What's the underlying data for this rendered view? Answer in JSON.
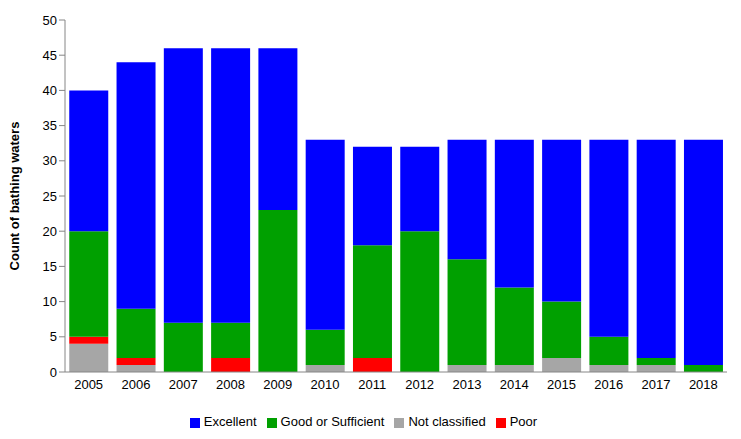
{
  "chart_data": {
    "type": "bar",
    "stacked": true,
    "y_label": "Count of bathing waters",
    "categories": [
      "2005",
      "2006",
      "2007",
      "2008",
      "2009",
      "2010",
      "2011",
      "2012",
      "2013",
      "2014",
      "2015",
      "2016",
      "2017",
      "2018"
    ],
    "series": [
      {
        "name": "Not classified",
        "color": "#a6a6a6",
        "values": [
          4,
          1,
          0,
          0,
          0,
          1,
          0,
          0,
          1,
          1,
          2,
          1,
          1,
          0
        ]
      },
      {
        "name": "Poor",
        "color": "#ff0000",
        "values": [
          1,
          1,
          0,
          2,
          0,
          0,
          2,
          0,
          0,
          0,
          0,
          0,
          0,
          0
        ]
      },
      {
        "name": "Good or Sufficient",
        "color": "#00a000",
        "values": [
          15,
          7,
          7,
          5,
          23,
          5,
          16,
          20,
          15,
          11,
          8,
          4,
          1,
          1
        ]
      },
      {
        "name": "Excellent",
        "color": "#0000ff",
        "values": [
          20,
          35,
          39,
          39,
          23,
          27,
          14,
          12,
          17,
          21,
          23,
          28,
          31,
          32
        ]
      }
    ],
    "ylim": [
      0,
      50
    ],
    "yticks": [
      0,
      5,
      10,
      15,
      20,
      25,
      30,
      35,
      40,
      45,
      50
    ],
    "grid": false,
    "legend": "bottom"
  }
}
